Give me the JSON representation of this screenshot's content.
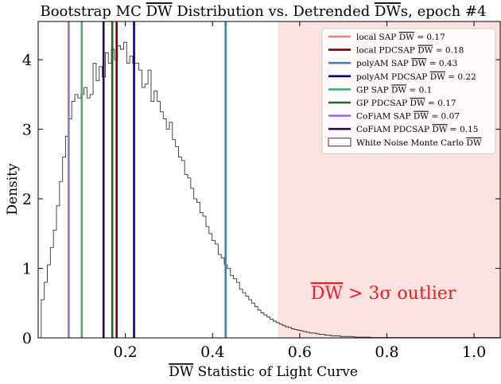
{
  "chart_data": {
    "type": "histogram",
    "title": "Bootstrap MC DW Distribution vs. Detrended DWs, epoch #4",
    "xlabel": "DW Statistic of Light Curve",
    "ylabel": "Density",
    "xlim": [
      0.0,
      1.06
    ],
    "ylim": [
      0,
      4.55
    ],
    "xticks": [
      0.2,
      0.4,
      0.6,
      0.8,
      1.0
    ],
    "yticks": [
      0,
      1,
      2,
      3,
      4
    ],
    "outlier_region": {
      "x_start": 0.55,
      "x_end": 1.06,
      "color": "#fde2e2",
      "label": "DW > 3σ outlier",
      "label_color": "#ff1a1a"
    },
    "histogram": {
      "name": "White Noise Monte Carlo DW",
      "bin_width": 0.007,
      "x_start": 0.007,
      "densities": [
        0.55,
        0.8,
        1.05,
        1.3,
        1.55,
        1.9,
        2.25,
        2.6,
        2.9,
        3.15,
        3.4,
        3.5,
        3.45,
        3.5,
        3.6,
        3.45,
        3.5,
        3.95,
        3.7,
        3.9,
        3.75,
        4.1,
        3.95,
        4.15,
        4.0,
        4.2,
        4.15,
        4.25,
        3.95,
        4.05,
        3.95,
        3.95,
        3.85,
        3.6,
        3.65,
        3.85,
        3.4,
        3.55,
        3.4,
        3.25,
        3.15,
        3.0,
        3.1,
        2.85,
        2.75,
        2.6,
        2.55,
        2.35,
        2.3,
        2.15,
        2.0,
        1.95,
        1.8,
        1.75,
        1.6,
        1.5,
        1.4,
        1.35,
        1.2,
        1.15,
        1.05,
        1.0,
        0.9,
        0.85,
        0.8,
        0.7,
        0.65,
        0.6,
        0.55,
        0.5,
        0.45,
        0.4,
        0.36,
        0.33,
        0.3,
        0.27,
        0.24,
        0.22,
        0.2,
        0.18,
        0.16,
        0.15,
        0.13,
        0.12,
        0.11,
        0.1,
        0.09,
        0.08,
        0.07,
        0.07,
        0.06,
        0.05,
        0.05,
        0.04,
        0.04,
        0.03,
        0.03,
        0.03,
        0.02,
        0.02,
        0.02,
        0.02,
        0.015,
        0.01,
        0.01,
        0.01,
        0.01,
        0.01,
        0.005,
        0.005,
        0.005,
        0.005,
        0.005,
        0.005,
        0.005,
        0.005,
        0.005,
        0.005,
        0.005,
        0.005,
        0.005,
        0.005,
        0.005,
        0.005,
        0.005,
        0.005,
        0.005,
        0.005,
        0.005,
        0.005,
        0.005,
        0.005,
        0.005,
        0.005,
        0.005,
        0.005,
        0.005,
        0.005,
        0.005,
        0.005,
        0.005,
        0.005,
        0.005,
        0.005,
        0.005,
        0.005,
        0.005,
        0.005,
        0.005,
        0.005,
        0.005,
        0.005,
        0.005,
        0.005,
        0.005,
        0.005
      ]
    },
    "vlines": [
      {
        "name": "local SAP DW = 0.17",
        "x": 0.17,
        "color": "#f08080"
      },
      {
        "name": "local PDCSAP DW = 0.18",
        "x": 0.18,
        "color": "#800000"
      },
      {
        "name": "polyAM SAP DW = 0.43",
        "x": 0.43,
        "color": "#4682b4"
      },
      {
        "name": "polyAM PDCSAP DW = 0.22",
        "x": 0.22,
        "color": "#000080"
      },
      {
        "name": "GP SAP DW = 0.1",
        "x": 0.1,
        "color": "#3cb371"
      },
      {
        "name": "GP PDCSAP DW = 0.17",
        "x": 0.17,
        "color": "#2e5e2e"
      },
      {
        "name": "CoFiAM SAP DW = 0.07",
        "x": 0.07,
        "color": "#9370db"
      },
      {
        "name": "CoFiAM PDCSAP DW = 0.15",
        "x": 0.15,
        "color": "#2a0a4a"
      }
    ]
  }
}
